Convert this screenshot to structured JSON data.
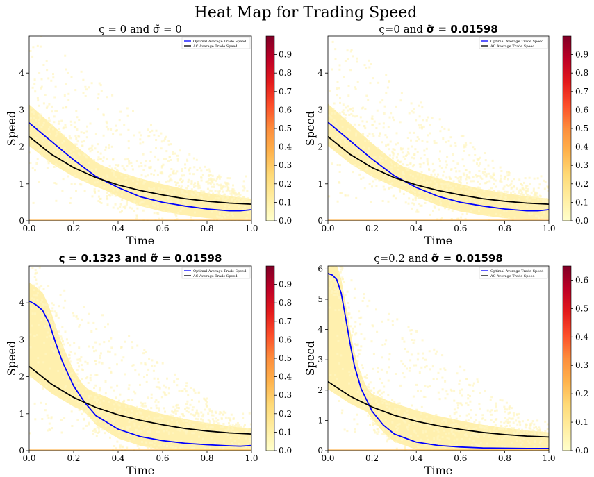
{
  "figure_title": "Heat Map for Trading Speed",
  "colors": {
    "optimal": "#0000ff",
    "ac": "#000000",
    "heat_low": "#ffffcc",
    "heat_mid": "#fd8d3c",
    "heat_high": "#800026"
  },
  "chart_data": [
    {
      "type": "heatmap",
      "title_plain": "ς = 0 and ",
      "title_math": "σ̃ = 0",
      "title_math_bold": false,
      "title_plain_bold": false,
      "xlabel": "Time",
      "ylabel": "Speed",
      "xlim": [
        0,
        1
      ],
      "ylim": [
        0,
        5
      ],
      "xticks": [
        "0.0",
        "0.2",
        "0.4",
        "0.6",
        "0.8",
        "1.0"
      ],
      "yticks": [
        "0",
        "1",
        "2",
        "3",
        "4"
      ],
      "colorbar_ticks": [
        "0.0",
        "0.1",
        "0.2",
        "0.3",
        "0.4",
        "0.5",
        "0.6",
        "0.7",
        "0.8",
        "0.9"
      ],
      "colorbar_range": [
        0,
        1
      ],
      "legend": [
        "Optimal Average Trade Speed",
        "AC Average Trade Speed"
      ],
      "series": [
        {
          "name": "Optimal Average Trade Speed",
          "x": [
            0,
            0.05,
            0.1,
            0.15,
            0.2,
            0.3,
            0.4,
            0.5,
            0.6,
            0.7,
            0.8,
            0.9,
            0.95,
            1.0
          ],
          "values": [
            2.65,
            2.4,
            2.15,
            1.9,
            1.65,
            1.2,
            0.9,
            0.65,
            0.5,
            0.4,
            0.32,
            0.27,
            0.27,
            0.3
          ]
        },
        {
          "name": "AC Average Trade Speed",
          "x": [
            0,
            0.1,
            0.2,
            0.3,
            0.4,
            0.5,
            0.6,
            0.7,
            0.8,
            0.9,
            1.0
          ],
          "values": [
            2.28,
            1.8,
            1.44,
            1.17,
            0.97,
            0.82,
            0.7,
            0.6,
            0.53,
            0.48,
            0.45
          ]
        }
      ]
    },
    {
      "type": "heatmap",
      "title_plain": "ς=0 and ",
      "title_math": "σ̃ = 0.01598",
      "title_math_bold": true,
      "title_plain_bold": false,
      "xlabel": "Time",
      "ylabel": "Speed",
      "xlim": [
        0,
        1
      ],
      "ylim": [
        0,
        5
      ],
      "xticks": [
        "0.0",
        "0.2",
        "0.4",
        "0.6",
        "0.8",
        "1.0"
      ],
      "yticks": [
        "0",
        "1",
        "2",
        "3",
        "4"
      ],
      "colorbar_ticks": [
        "0.0",
        "0.1",
        "0.2",
        "0.3",
        "0.4",
        "0.5",
        "0.6",
        "0.7",
        "0.8",
        "0.9"
      ],
      "colorbar_range": [
        0,
        1
      ],
      "legend": [
        "Optimal Average Trade Speed",
        "AC Average Trade Speed"
      ],
      "series": [
        {
          "name": "Optimal Average Trade Speed",
          "x": [
            0,
            0.05,
            0.1,
            0.15,
            0.2,
            0.3,
            0.4,
            0.5,
            0.6,
            0.7,
            0.8,
            0.9,
            0.95,
            1.0
          ],
          "values": [
            2.67,
            2.42,
            2.17,
            1.92,
            1.67,
            1.22,
            0.9,
            0.66,
            0.5,
            0.4,
            0.32,
            0.27,
            0.27,
            0.3
          ]
        },
        {
          "name": "AC Average Trade Speed",
          "x": [
            0,
            0.1,
            0.2,
            0.3,
            0.4,
            0.5,
            0.6,
            0.7,
            0.8,
            0.9,
            1.0
          ],
          "values": [
            2.28,
            1.8,
            1.44,
            1.17,
            0.97,
            0.82,
            0.7,
            0.6,
            0.53,
            0.48,
            0.45
          ]
        }
      ]
    },
    {
      "type": "heatmap",
      "title_plain": "ς = 0.1323",
      "title_math": " and σ̃ = 0.01598",
      "title_math_bold": true,
      "title_plain_bold": true,
      "xlabel": "Time",
      "ylabel": "Speed",
      "xlim": [
        0,
        1
      ],
      "ylim": [
        0,
        5
      ],
      "xticks": [
        "0.0",
        "0.2",
        "0.4",
        "0.6",
        "0.8",
        "1.0"
      ],
      "yticks": [
        "0",
        "1",
        "2",
        "3",
        "4"
      ],
      "colorbar_ticks": [
        "0.0",
        "0.1",
        "0.2",
        "0.3",
        "0.4",
        "0.5",
        "0.6",
        "0.7",
        "0.8",
        "0.9"
      ],
      "colorbar_range": [
        0,
        1
      ],
      "legend": [
        "Optimal Average Trade Speed",
        "AC Average Trade Speed"
      ],
      "series": [
        {
          "name": "Optimal Average Trade Speed",
          "x": [
            0,
            0.03,
            0.06,
            0.09,
            0.12,
            0.15,
            0.2,
            0.25,
            0.3,
            0.4,
            0.5,
            0.6,
            0.7,
            0.8,
            0.9,
            0.95,
            1.0
          ],
          "values": [
            4.05,
            3.95,
            3.8,
            3.45,
            2.9,
            2.4,
            1.75,
            1.3,
            0.95,
            0.58,
            0.38,
            0.27,
            0.2,
            0.16,
            0.13,
            0.12,
            0.14
          ]
        },
        {
          "name": "AC Average Trade Speed",
          "x": [
            0,
            0.1,
            0.2,
            0.3,
            0.4,
            0.5,
            0.6,
            0.7,
            0.8,
            0.9,
            1.0
          ],
          "values": [
            2.28,
            1.8,
            1.44,
            1.17,
            0.97,
            0.82,
            0.7,
            0.6,
            0.53,
            0.48,
            0.45
          ]
        }
      ]
    },
    {
      "type": "heatmap",
      "title_plain": "ς=0.2 and ",
      "title_math": "σ̃ = 0.01598",
      "title_math_bold": true,
      "title_plain_bold": false,
      "xlabel": "Time",
      "ylabel": "Speed",
      "xlim": [
        0,
        1
      ],
      "ylim": [
        0,
        6.1
      ],
      "xticks": [
        "0.0",
        "0.2",
        "0.4",
        "0.6",
        "0.8",
        "1.0"
      ],
      "yticks": [
        "0",
        "1",
        "2",
        "3",
        "4",
        "5",
        "6"
      ],
      "colorbar_ticks": [
        "0.0",
        "0.1",
        "0.2",
        "0.3",
        "0.4",
        "0.5",
        "0.6"
      ],
      "colorbar_range": [
        0,
        0.65
      ],
      "legend": [
        "Optimal Average Trade Speed",
        "AC Average Trade Speed"
      ],
      "series": [
        {
          "name": "Optimal Average Trade Speed",
          "x": [
            0,
            0.02,
            0.04,
            0.06,
            0.08,
            0.1,
            0.12,
            0.15,
            0.2,
            0.25,
            0.3,
            0.4,
            0.5,
            0.6,
            0.7,
            0.8,
            0.9,
            1.0
          ],
          "values": [
            5.85,
            5.8,
            5.65,
            5.2,
            4.4,
            3.55,
            2.8,
            2.05,
            1.3,
            0.85,
            0.55,
            0.28,
            0.17,
            0.12,
            0.09,
            0.08,
            0.07,
            0.07
          ]
        },
        {
          "name": "AC Average Trade Speed",
          "x": [
            0,
            0.1,
            0.2,
            0.3,
            0.4,
            0.5,
            0.6,
            0.7,
            0.8,
            0.9,
            1.0
          ],
          "values": [
            2.28,
            1.8,
            1.44,
            1.17,
            0.97,
            0.82,
            0.7,
            0.6,
            0.53,
            0.48,
            0.45
          ]
        }
      ]
    }
  ]
}
